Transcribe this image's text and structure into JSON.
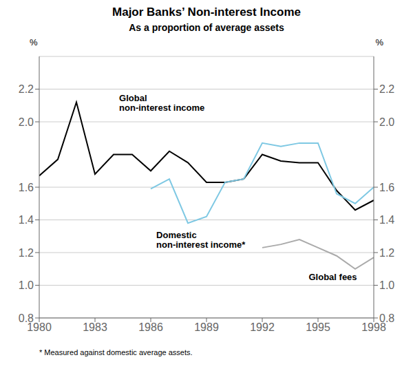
{
  "chart_data": {
    "type": "line",
    "title": "Major Banks’ Non-interest Income",
    "subtitle": "As a proportion of average assets",
    "footnote": "* Measured against domestic average assets.",
    "ylabel": "%",
    "y2label": "%",
    "x": [
      1980,
      1981,
      1982,
      1983,
      1984,
      1985,
      1986,
      1987,
      1988,
      1989,
      1990,
      1991,
      1992,
      1993,
      1994,
      1995,
      1996,
      1997,
      1998
    ],
    "series": [
      {
        "color": "#000000",
        "values": [
          1.67,
          1.77,
          2.12,
          1.68,
          1.8,
          1.8,
          1.7,
          1.82,
          1.75,
          1.63,
          1.63,
          1.65,
          1.8,
          1.76,
          1.75,
          1.75,
          1.58,
          1.46,
          1.52
        ]
      },
      {
        "color": "#7ec8e3",
        "values": [
          null,
          null,
          null,
          null,
          null,
          null,
          1.59,
          1.65,
          1.38,
          1.42,
          1.63,
          1.65,
          1.87,
          1.85,
          1.87,
          1.87,
          1.56,
          1.5,
          1.6
        ]
      },
      {
        "color": "#aaaaaa",
        "values": [
          null,
          null,
          null,
          null,
          null,
          null,
          null,
          null,
          null,
          null,
          null,
          null,
          1.23,
          1.25,
          1.28,
          1.23,
          1.18,
          1.1,
          1.17
        ]
      }
    ],
    "annotations": [
      {
        "text": "Global\nnon-interest income",
        "x": 1984.3,
        "y": 2.05
      },
      {
        "text": "Domestic\nnon-interest income*",
        "x": 1986.3,
        "y": 1.345
      },
      {
        "text": "Global fees",
        "x": 1994.5,
        "y": 1.085
      }
    ],
    "xlim": [
      1980,
      1998
    ],
    "xticks": [
      1980,
      1983,
      1986,
      1989,
      1992,
      1995,
      1998
    ],
    "ylim": [
      0.8,
      2.4
    ],
    "yticks": [
      0.8,
      {
        "value": 1.0,
        "label": "1.0"
      },
      1.2,
      1.4,
      1.6,
      {
        "value": 2.0,
        "label": "2.0"
      },
      2.2
    ],
    "y2lim": [
      0.8,
      2.4
    ],
    "y2ticks": [
      0.8,
      {
        "value": 1.0,
        "label": "1.0"
      },
      1.2,
      1.4,
      1.6,
      {
        "value": 2.0,
        "label": "2.0"
      },
      2.2
    ],
    "grid": true
  }
}
